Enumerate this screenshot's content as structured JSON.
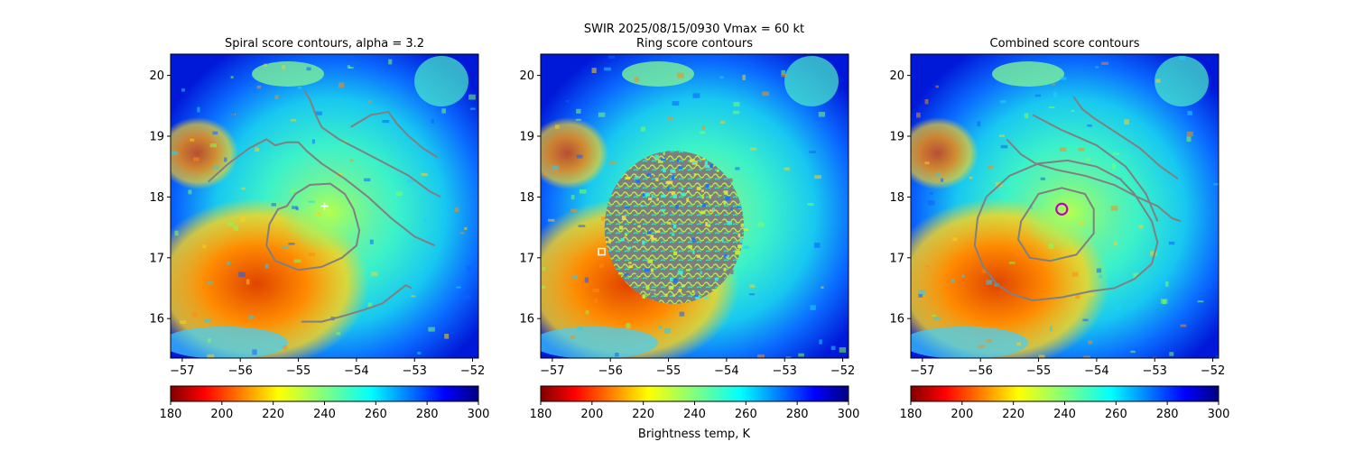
{
  "figure": {
    "suptitle_line1": "SWIR  2025/08/15/0930    Vmax = 60 kt",
    "colorbar_label": "Brightness temp, K"
  },
  "chart_data": [
    {
      "type": "heatmap",
      "title": "Spiral score contours, alpha =  3.2",
      "xlim": [
        -57.2,
        -51.9
      ],
      "ylim": [
        15.35,
        20.35
      ],
      "xticks": [
        -57,
        -56,
        -55,
        -54,
        -53,
        -52
      ],
      "yticks": [
        16,
        17,
        18,
        19,
        20
      ],
      "tick_labels_x": [
        "−57",
        "−56",
        "−55",
        "−54",
        "−53",
        "−52"
      ],
      "tick_labels_y": [
        "16",
        "17",
        "18",
        "19",
        "20"
      ],
      "colorbar": {
        "range": [
          180,
          300
        ],
        "ticks": [
          "180",
          "200",
          "220",
          "240",
          "260",
          "280",
          "300"
        ],
        "cmap": "jet_r"
      },
      "marker": {
        "type": "plus",
        "lon": -54.55,
        "lat": 17.85,
        "color": "#ffffff"
      },
      "contour_color": "#808080",
      "contours": [
        [
          [
            -55.2,
            17.85
          ],
          [
            -55.05,
            18.05
          ],
          [
            -54.8,
            18.2
          ],
          [
            -54.45,
            18.22
          ],
          [
            -54.2,
            18.05
          ],
          [
            -54.05,
            17.8
          ],
          [
            -53.95,
            17.45
          ],
          [
            -54.0,
            17.2
          ],
          [
            -54.25,
            17.0
          ],
          [
            -54.6,
            16.85
          ],
          [
            -55.0,
            16.8
          ],
          [
            -55.4,
            16.95
          ],
          [
            -55.55,
            17.2
          ],
          [
            -55.5,
            17.55
          ],
          [
            -55.35,
            17.8
          ],
          [
            -55.2,
            17.85
          ]
        ],
        [
          [
            -56.55,
            18.25
          ],
          [
            -56.2,
            18.55
          ],
          [
            -55.85,
            18.8
          ],
          [
            -55.55,
            18.95
          ],
          [
            -55.4,
            18.85
          ],
          [
            -55.2,
            18.9
          ],
          [
            -55.0,
            18.9
          ],
          [
            -54.85,
            18.75
          ],
          [
            -54.6,
            18.55
          ],
          [
            -54.2,
            18.3
          ],
          [
            -53.8,
            18.0
          ],
          [
            -53.4,
            17.65
          ],
          [
            -53.0,
            17.35
          ],
          [
            -52.65,
            17.2
          ]
        ],
        [
          [
            -54.9,
            19.75
          ],
          [
            -54.8,
            19.6
          ],
          [
            -54.7,
            19.35
          ],
          [
            -54.6,
            19.15
          ],
          [
            -54.3,
            18.95
          ],
          [
            -53.9,
            18.75
          ],
          [
            -53.5,
            18.55
          ],
          [
            -53.1,
            18.35
          ],
          [
            -52.75,
            18.1
          ],
          [
            -52.55,
            18.0
          ]
        ],
        [
          [
            -54.1,
            19.15
          ],
          [
            -53.75,
            19.35
          ],
          [
            -53.45,
            19.4
          ],
          [
            -53.3,
            19.2
          ],
          [
            -53.1,
            19.0
          ],
          [
            -52.85,
            18.8
          ],
          [
            -52.6,
            18.65
          ]
        ],
        [
          [
            -54.95,
            15.95
          ],
          [
            -54.6,
            15.95
          ],
          [
            -54.2,
            16.05
          ],
          [
            -53.85,
            16.15
          ],
          [
            -53.55,
            16.25
          ],
          [
            -53.35,
            16.4
          ],
          [
            -53.15,
            16.55
          ],
          [
            -53.05,
            16.5
          ]
        ]
      ]
    },
    {
      "type": "heatmap",
      "title": "Ring score contours",
      "xlim": [
        -57.2,
        -51.9
      ],
      "ylim": [
        15.35,
        20.35
      ],
      "xticks": [
        -57,
        -56,
        -55,
        -54,
        -53,
        -52
      ],
      "yticks": [
        16,
        17,
        18,
        19,
        20
      ],
      "tick_labels_x": [
        "−57",
        "−56",
        "−55",
        "−54",
        "−53",
        "−52"
      ],
      "tick_labels_y": [
        "16",
        "17",
        "18",
        "19",
        "20"
      ],
      "colorbar": {
        "range": [
          180,
          300
        ],
        "ticks": [
          "180",
          "200",
          "220",
          "240",
          "260",
          "280",
          "300"
        ],
        "cmap": "jet_r"
      },
      "marker": {
        "type": "square",
        "lon": -56.15,
        "lat": 17.1,
        "color": "#ffffff"
      },
      "contour_color": "#808080",
      "ring_region": {
        "center": [
          -54.9,
          17.5
        ],
        "radius_deg": 1.2
      }
    },
    {
      "type": "heatmap",
      "title": "Combined score contours",
      "xlim": [
        -57.2,
        -51.9
      ],
      "ylim": [
        15.35,
        20.35
      ],
      "xticks": [
        -57,
        -56,
        -55,
        -54,
        -53,
        -52
      ],
      "yticks": [
        16,
        17,
        18,
        19,
        20
      ],
      "tick_labels_x": [
        "−57",
        "−56",
        "−55",
        "−54",
        "−53",
        "−52"
      ],
      "tick_labels_y": [
        "16",
        "17",
        "18",
        "19",
        "20"
      ],
      "colorbar": {
        "range": [
          180,
          300
        ],
        "ticks": [
          "180",
          "200",
          "220",
          "240",
          "260",
          "280",
          "300"
        ],
        "cmap": "jet_r"
      },
      "marker": {
        "type": "circle",
        "lon": -54.6,
        "lat": 17.8,
        "color": "#c000c0"
      },
      "contour_color": "#808080",
      "contours": [
        [
          [
            -55.2,
            17.75
          ],
          [
            -55.0,
            18.05
          ],
          [
            -54.6,
            18.15
          ],
          [
            -54.2,
            18.05
          ],
          [
            -54.05,
            17.8
          ],
          [
            -54.05,
            17.4
          ],
          [
            -54.35,
            17.05
          ],
          [
            -54.8,
            16.95
          ],
          [
            -55.15,
            17.0
          ],
          [
            -55.35,
            17.3
          ],
          [
            -55.3,
            17.6
          ],
          [
            -55.2,
            17.75
          ]
        ],
        [
          [
            -55.9,
            18.0
          ],
          [
            -55.5,
            18.35
          ],
          [
            -55.0,
            18.55
          ],
          [
            -54.5,
            18.6
          ],
          [
            -54.0,
            18.5
          ],
          [
            -53.6,
            18.3
          ],
          [
            -53.35,
            18.05
          ],
          [
            -53.05,
            17.6
          ],
          [
            -52.95,
            17.25
          ],
          [
            -53.05,
            16.9
          ],
          [
            -53.35,
            16.65
          ],
          [
            -53.7,
            16.5
          ],
          [
            -54.1,
            16.45
          ],
          [
            -54.6,
            16.35
          ],
          [
            -55.1,
            16.3
          ],
          [
            -55.45,
            16.4
          ],
          [
            -55.7,
            16.55
          ],
          [
            -55.95,
            16.85
          ],
          [
            -56.1,
            17.2
          ],
          [
            -56.05,
            17.65
          ],
          [
            -55.9,
            18.0
          ]
        ],
        [
          [
            -55.55,
            18.95
          ],
          [
            -55.3,
            18.7
          ],
          [
            -55.05,
            18.55
          ],
          [
            -54.7,
            18.45
          ],
          [
            -54.2,
            18.35
          ],
          [
            -53.7,
            18.2
          ],
          [
            -53.3,
            18.0
          ],
          [
            -52.95,
            17.85
          ],
          [
            -52.7,
            17.65
          ],
          [
            -52.55,
            17.6
          ]
        ],
        [
          [
            -54.4,
            19.65
          ],
          [
            -54.25,
            19.45
          ],
          [
            -54.05,
            19.3
          ],
          [
            -53.65,
            19.05
          ],
          [
            -53.25,
            18.8
          ],
          [
            -52.9,
            18.5
          ],
          [
            -52.6,
            18.3
          ]
        ],
        [
          [
            -55.1,
            19.35
          ],
          [
            -54.6,
            19.1
          ],
          [
            -54.0,
            18.85
          ],
          [
            -53.5,
            18.5
          ],
          [
            -53.15,
            18.05
          ],
          [
            -52.95,
            17.6
          ]
        ]
      ]
    }
  ]
}
